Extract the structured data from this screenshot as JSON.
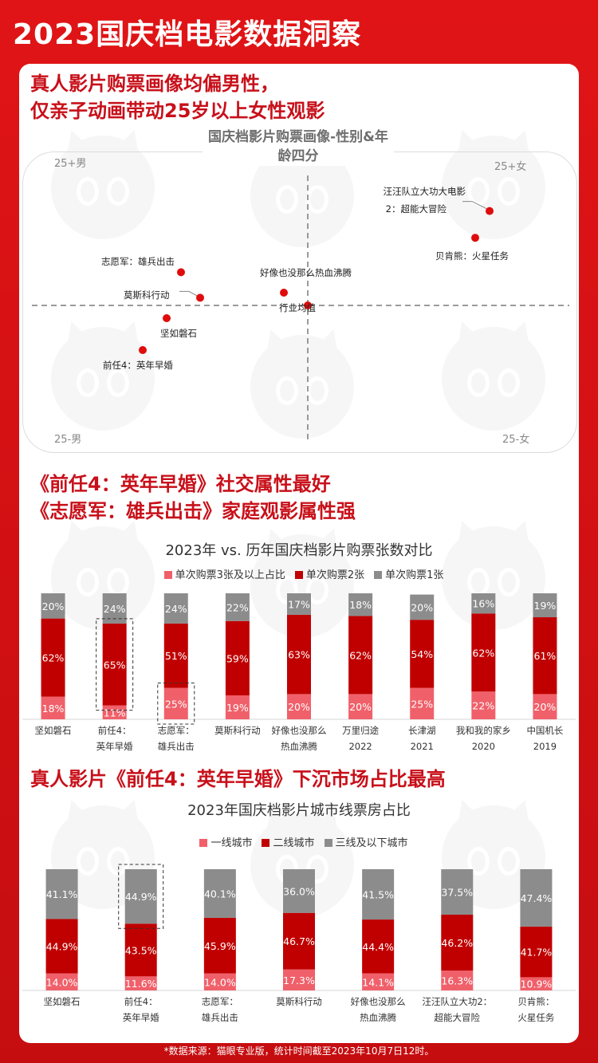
{
  "header": {
    "title": "2023国庆档电影数据洞察"
  },
  "section1": {
    "headline": [
      "真人影片购票画像均偏男性，",
      "仅亲子动画带动25岁以上女性观影"
    ]
  },
  "section2": {
    "headline": [
      "《前任4：英年早婚》社交属性最好",
      "《志愿军：雄兵出击》家庭观影属性强"
    ]
  },
  "section3": {
    "headline": "真人影片《前任4：英年早婚》下沉市场占比最高"
  },
  "footer": {
    "source": "*数据来源：猫眼专业版，统计时间截至2023年10月7日12时。"
  },
  "colors": {
    "brand_red": "#d10f12",
    "dark_red": "#c00000",
    "light_red": "#f0606a",
    "gray": "#8c8c8c"
  },
  "chart_data": [
    {
      "type": "scatter",
      "title": "国庆档影片购票画像-性别&年龄四分",
      "quadrants": {
        "top_left": "25+男",
        "top_right": "25+女",
        "bottom_left": "25-男",
        "bottom_right": "25-女"
      },
      "center_label": "行业均值",
      "xlim": [
        -1,
        1
      ],
      "ylim": [
        -1,
        1
      ],
      "points": [
        {
          "label": "汪汪队立大功大电影2：超能大冒险",
          "label_lines": [
            "汪汪队立大功大电影",
            "2：超能大冒险"
          ],
          "x": 0.76,
          "y": 0.74
        },
        {
          "label": "贝肯熊：火星任务",
          "label_lines": [
            "贝肯熊：火星任务"
          ],
          "x": 0.7,
          "y": 0.53
        },
        {
          "label": "志愿军：雄兵出击",
          "label_lines": [
            "志愿军：雄兵出击"
          ],
          "x": -0.53,
          "y": 0.26
        },
        {
          "label": "好像也没那么热血沸腾",
          "label_lines": [
            "好像也没那么热血沸腾"
          ],
          "x": -0.1,
          "y": 0.1
        },
        {
          "label": "莫斯科行动",
          "label_lines": [
            "莫斯科行动"
          ],
          "x": -0.45,
          "y": 0.06
        },
        {
          "label": "行业均值",
          "label_lines": [
            "行业均值"
          ],
          "x": 0.0,
          "y": 0.0
        },
        {
          "label": "坚如磐石",
          "label_lines": [
            "坚如磐石"
          ],
          "x": -0.59,
          "y": -0.1
        },
        {
          "label": "前任4：英年早婚",
          "label_lines": [
            "前任4：英年早婚"
          ],
          "x": -0.69,
          "y": -0.35
        }
      ]
    },
    {
      "type": "bar",
      "stacked": true,
      "title": "2023年 vs. 历年国庆档影片购票张数对比",
      "categories": [
        "坚如磐石",
        "前任4：英年早婚",
        "志愿军：雄兵出击",
        "莫斯科行动",
        "好像也没那么热血沸腾",
        "万里归途 2022",
        "长津湖 2021",
        "我和我的家乡 2020",
        "中国机长 2019"
      ],
      "category_lines": [
        [
          "坚如磐石"
        ],
        [
          "前任4：",
          "英年早婚"
        ],
        [
          "志愿军：",
          "雄兵出击"
        ],
        [
          "莫斯科行动"
        ],
        [
          "好像也没那么",
          "热血沸腾"
        ],
        [
          "万里归途",
          "2022"
        ],
        [
          "长津湖",
          "2021"
        ],
        [
          "我和我的家乡",
          "2020"
        ],
        [
          "中国机长",
          "2019"
        ]
      ],
      "series": [
        {
          "name": "单次购票3张及以上占比",
          "color": "#f0606a",
          "values": [
            18,
            11,
            25,
            19,
            20,
            20,
            25,
            22,
            20
          ]
        },
        {
          "name": "单次购票2张",
          "color": "#c00000",
          "values": [
            62,
            65,
            51,
            59,
            63,
            62,
            54,
            62,
            61
          ]
        },
        {
          "name": "单次购票1张",
          "color": "#8c8c8c",
          "values": [
            20,
            24,
            24,
            22,
            17,
            18,
            20,
            16,
            19
          ]
        }
      ],
      "unit": "%",
      "highlight": [
        {
          "category": "前任4：英年早婚",
          "series": "单次购票2张"
        },
        {
          "category": "志愿军：雄兵出击",
          "series": "单次购票3张及以上占比"
        }
      ],
      "ylim": [
        0,
        100
      ]
    },
    {
      "type": "bar",
      "stacked": true,
      "title": "2023年国庆档影片城市线票房占比",
      "categories": [
        "坚如磐石",
        "前任4：英年早婚",
        "志愿军：雄兵出击",
        "莫斯科行动",
        "好像也没那么热血沸腾",
        "汪汪队立大功2：超能大冒险",
        "贝肯熊：火星任务"
      ],
      "category_lines": [
        [
          "坚如磐石"
        ],
        [
          "前任4：",
          "英年早婚"
        ],
        [
          "志愿军：",
          "雄兵出击"
        ],
        [
          "莫斯科行动"
        ],
        [
          "好像也没那么",
          "热血沸腾"
        ],
        [
          "汪汪队立大功2：",
          "超能大冒险"
        ],
        [
          "贝肯熊：",
          "火星任务"
        ]
      ],
      "series": [
        {
          "name": "一线城市",
          "color": "#f0606a",
          "values": [
            14.0,
            11.6,
            14.0,
            17.3,
            14.1,
            16.3,
            10.9
          ]
        },
        {
          "name": "二线城市",
          "color": "#c00000",
          "values": [
            44.9,
            43.5,
            45.9,
            46.7,
            44.4,
            46.2,
            41.7
          ]
        },
        {
          "name": "三线及以下城市",
          "color": "#8c8c8c",
          "values": [
            41.1,
            44.9,
            40.1,
            36.0,
            41.5,
            37.5,
            47.4
          ]
        }
      ],
      "unit": "%",
      "highlight": [
        {
          "category": "前任4：英年早婚",
          "series": "三线及以下城市"
        }
      ],
      "ylim": [
        0,
        100
      ]
    }
  ]
}
